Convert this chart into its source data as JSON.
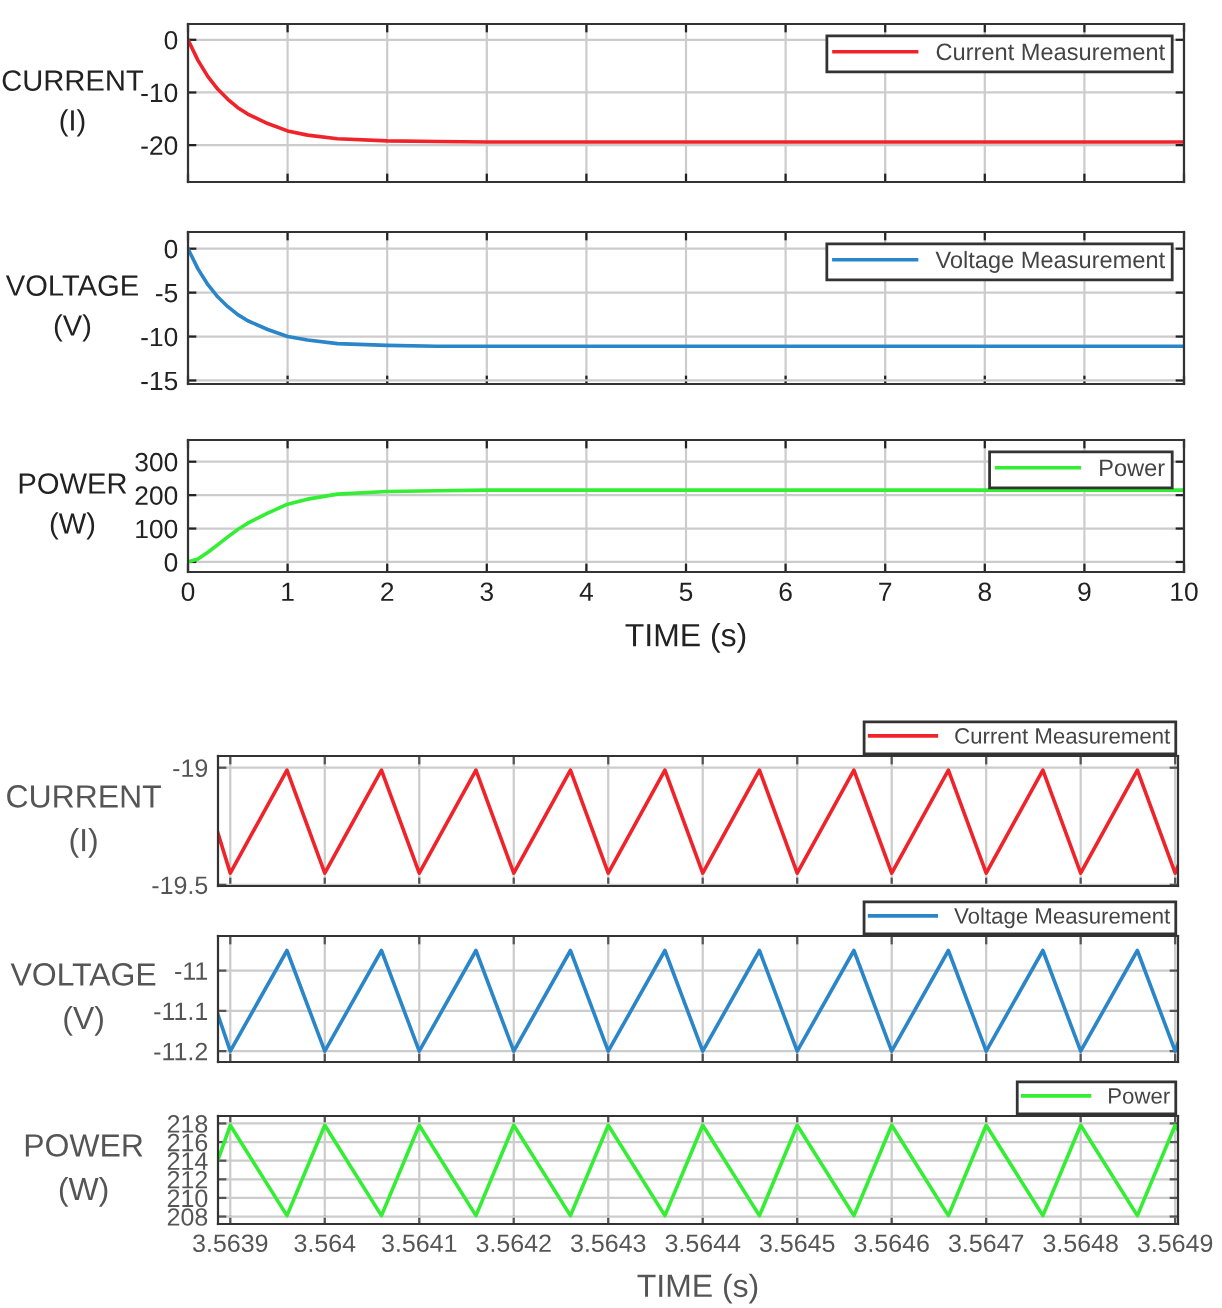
{
  "chart_data": [
    {
      "type": "line",
      "ylabel": "CURRENT\n(I)",
      "xlim": [
        0,
        10
      ],
      "xticks": [
        0,
        1,
        2,
        3,
        4,
        5,
        6,
        7,
        8,
        9,
        10
      ],
      "ylim": [
        -27,
        3
      ],
      "yticks": [
        -20,
        -10,
        0
      ],
      "tick_labels": "y",
      "grid": true,
      "legend": "top right",
      "series": [
        {
          "name": "Current Measurement",
          "color": "#f0232a",
          "x": [
            0,
            0.1,
            0.2,
            0.3,
            0.4,
            0.5,
            0.6,
            0.8,
            1,
            1.2,
            1.5,
            2,
            2.5,
            3,
            4,
            5,
            6,
            7,
            8,
            9,
            10
          ],
          "values": [
            0,
            -3.9,
            -7.0,
            -9.4,
            -11.3,
            -12.9,
            -14.1,
            -15.9,
            -17.3,
            -18.1,
            -18.8,
            -19.2,
            -19.3,
            -19.4,
            -19.4,
            -19.4,
            -19.4,
            -19.4,
            -19.4,
            -19.4,
            -19.4
          ]
        }
      ]
    },
    {
      "type": "line",
      "ylabel": "VOLTAGE\n(V)",
      "xlim": [
        0,
        10
      ],
      "xticks": [
        0,
        1,
        2,
        3,
        4,
        5,
        6,
        7,
        8,
        9,
        10
      ],
      "ylim": [
        -15.4,
        1.9
      ],
      "yticks": [
        -15,
        -10,
        -5,
        0
      ],
      "tick_labels": "y",
      "grid": true,
      "legend": "top right",
      "series": [
        {
          "name": "Voltage Measurement",
          "color": "#2a86c8",
          "x": [
            0,
            0.1,
            0.2,
            0.3,
            0.4,
            0.5,
            0.6,
            0.8,
            1,
            1.2,
            1.5,
            2,
            2.5,
            3,
            4,
            5,
            6,
            7,
            8,
            9,
            10
          ],
          "values": [
            0,
            -2.3,
            -4.1,
            -5.5,
            -6.6,
            -7.5,
            -8.2,
            -9.2,
            -10.0,
            -10.4,
            -10.8,
            -11.0,
            -11.1,
            -11.1,
            -11.1,
            -11.1,
            -11.1,
            -11.1,
            -11.1,
            -11.1,
            -11.1
          ]
        }
      ]
    },
    {
      "type": "line",
      "ylabel": "POWER\n(W)",
      "xlabel": "TIME (s)",
      "xlim": [
        0,
        10
      ],
      "xticks": [
        0,
        1,
        2,
        3,
        4,
        5,
        6,
        7,
        8,
        9,
        10
      ],
      "ylim": [
        -30,
        365
      ],
      "yticks": [
        0,
        100,
        200,
        300
      ],
      "grid": true,
      "legend": "top right",
      "series": [
        {
          "name": "Power",
          "color": "#33ee33",
          "x": [
            0,
            0.1,
            0.2,
            0.3,
            0.4,
            0.5,
            0.6,
            0.8,
            1,
            1.2,
            1.5,
            2,
            2.5,
            3,
            4,
            5,
            6,
            7,
            8,
            9,
            10
          ],
          "values": [
            0,
            9,
            29,
            52,
            75,
            97,
            116,
            146,
            173,
            188,
            203,
            211,
            213,
            215,
            215,
            215,
            215,
            215,
            215,
            215,
            215
          ]
        }
      ]
    },
    {
      "type": "line",
      "ylabel": "CURRENT\n(I)",
      "xlim": [
        3.563887,
        3.564903
      ],
      "xticks": [
        3.5639,
        3.564,
        3.5641,
        3.5642,
        3.5643,
        3.5644,
        3.5645,
        3.5646,
        3.5647,
        3.5648,
        3.5649
      ],
      "ylim": [
        -19.505,
        -18.95
      ],
      "yticks": [
        -19.5,
        -19
      ],
      "tick_labels": "y",
      "grid": true,
      "legend": "top right",
      "series": [
        {
          "name": "Current Measurement",
          "color": "#f0232a",
          "x": [
            3.563887,
            3.5639,
            3.56396,
            3.564,
            3.56406,
            3.5641,
            3.56416,
            3.5642,
            3.56426,
            3.5643,
            3.56436,
            3.5644,
            3.56446,
            3.5645,
            3.56456,
            3.5646,
            3.56466,
            3.5647,
            3.56476,
            3.5648,
            3.56486,
            3.5649,
            3.564903
          ],
          "values": [
            -19.28,
            -19.45,
            -19.01,
            -19.45,
            -19.01,
            -19.45,
            -19.01,
            -19.45,
            -19.01,
            -19.45,
            -19.01,
            -19.45,
            -19.01,
            -19.45,
            -19.01,
            -19.45,
            -19.01,
            -19.45,
            -19.01,
            -19.45,
            -19.01,
            -19.45,
            -19.42
          ]
        }
      ]
    },
    {
      "type": "line",
      "ylabel": "VOLTAGE\n(V)",
      "xlim": [
        3.563887,
        3.564903
      ],
      "xticks": [
        3.5639,
        3.564,
        3.5641,
        3.5642,
        3.5643,
        3.5644,
        3.5645,
        3.5646,
        3.5647,
        3.5648,
        3.5649
      ],
      "ylim": [
        -11.227,
        -10.914
      ],
      "yticks": [
        -11.2,
        -11.1,
        -11
      ],
      "tick_labels": "y",
      "grid": true,
      "legend": "top right",
      "series": [
        {
          "name": "Voltage Measurement",
          "color": "#2a86c8",
          "x": [
            3.563887,
            3.5639,
            3.56396,
            3.564,
            3.56406,
            3.5641,
            3.56416,
            3.5642,
            3.56426,
            3.5643,
            3.56436,
            3.5644,
            3.56446,
            3.5645,
            3.56456,
            3.5646,
            3.56466,
            3.5647,
            3.56476,
            3.5648,
            3.56486,
            3.5649,
            3.564903
          ],
          "values": [
            -11.11,
            -11.2,
            -10.95,
            -11.2,
            -10.95,
            -11.2,
            -10.95,
            -11.2,
            -10.95,
            -11.2,
            -10.95,
            -11.2,
            -10.95,
            -11.2,
            -10.95,
            -11.2,
            -10.95,
            -11.2,
            -10.95,
            -11.2,
            -10.95,
            -11.2,
            -11.18
          ]
        }
      ]
    },
    {
      "type": "line",
      "ylabel": "POWER\n(W)",
      "xlabel": "TIME (s)",
      "xlim": [
        3.563887,
        3.564903
      ],
      "xticks": [
        3.5639,
        3.564,
        3.5641,
        3.5642,
        3.5643,
        3.5644,
        3.5645,
        3.5646,
        3.5647,
        3.5648,
        3.5649
      ],
      "ylim": [
        207.2,
        218.8
      ],
      "yticks": [
        208,
        210,
        212,
        214,
        216,
        218
      ],
      "grid": true,
      "legend": "top right",
      "series": [
        {
          "name": "Power",
          "color": "#33ee33",
          "x": [
            3.563887,
            3.5639,
            3.56396,
            3.564,
            3.56406,
            3.5641,
            3.56416,
            3.5642,
            3.56426,
            3.5643,
            3.56436,
            3.5644,
            3.56446,
            3.5645,
            3.56456,
            3.5646,
            3.56466,
            3.5647,
            3.56476,
            3.5648,
            3.56486,
            3.5649,
            3.564903
          ],
          "values": [
            214.1,
            217.8,
            208.1,
            217.8,
            208.1,
            217.8,
            208.1,
            217.8,
            208.1,
            217.8,
            208.1,
            217.8,
            208.1,
            217.8,
            208.1,
            217.8,
            208.1,
            217.8,
            208.1,
            217.8,
            208.1,
            217.8,
            217.3
          ]
        }
      ]
    }
  ]
}
